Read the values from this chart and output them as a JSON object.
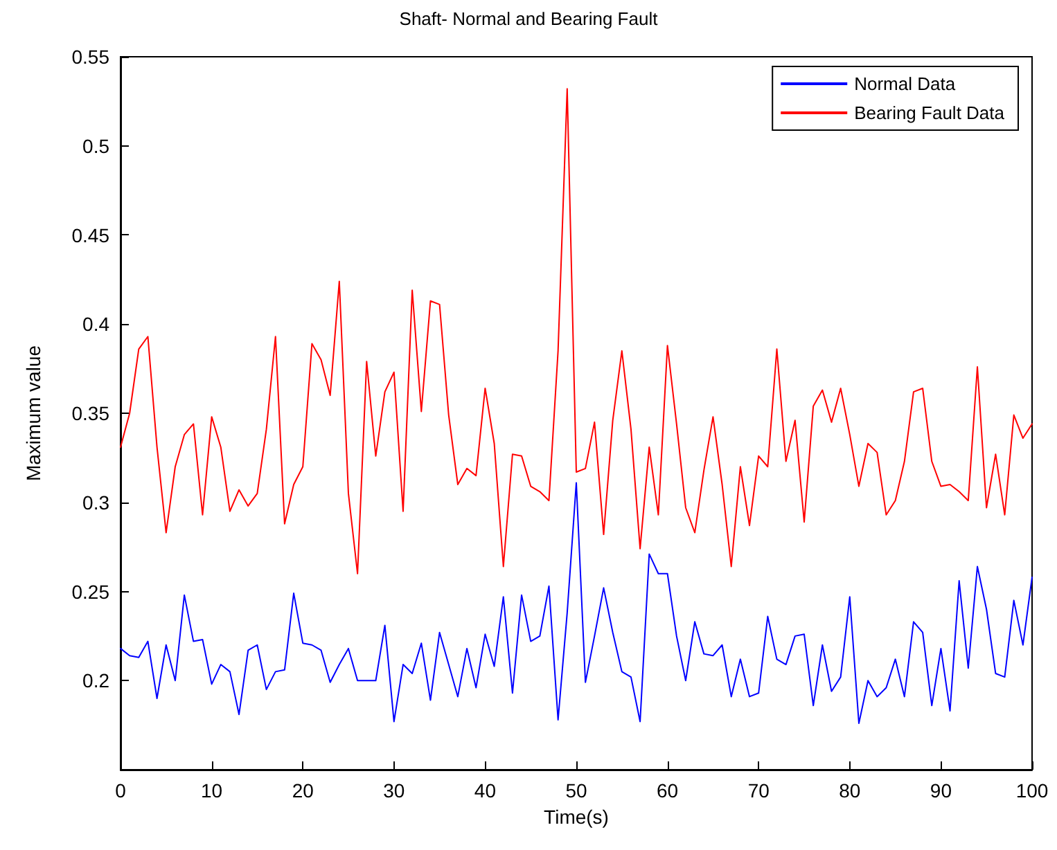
{
  "chart_data": {
    "type": "line",
    "title": "Shaft- Normal and Bearing Fault",
    "xlabel": "Time(s)",
    "ylabel": "Maximum value",
    "x": [
      0,
      1,
      2,
      3,
      4,
      5,
      6,
      7,
      8,
      9,
      10,
      11,
      12,
      13,
      14,
      15,
      16,
      17,
      18,
      19,
      20,
      21,
      22,
      23,
      24,
      25,
      26,
      27,
      28,
      29,
      30,
      31,
      32,
      33,
      34,
      35,
      36,
      37,
      38,
      39,
      40,
      41,
      42,
      43,
      44,
      45,
      46,
      47,
      48,
      49,
      50,
      51,
      52,
      53,
      54,
      55,
      56,
      57,
      58,
      59,
      60,
      61,
      62,
      63,
      64,
      65,
      66,
      67,
      68,
      69,
      70,
      71,
      72,
      73,
      74,
      75,
      76,
      77,
      78,
      79,
      80,
      81,
      82,
      83,
      84,
      85,
      86,
      87,
      88,
      89,
      90,
      91,
      92,
      93,
      94,
      95,
      96,
      97,
      98,
      99,
      100
    ],
    "series": [
      {
        "name": "Normal Data",
        "color": "#0000ff",
        "values": [
          0.218,
          0.214,
          0.213,
          0.222,
          0.19,
          0.22,
          0.2,
          0.248,
          0.222,
          0.223,
          0.198,
          0.209,
          0.205,
          0.181,
          0.217,
          0.22,
          0.195,
          0.205,
          0.206,
          0.249,
          0.221,
          0.22,
          0.217,
          0.199,
          0.209,
          0.218,
          0.2,
          0.2,
          0.2,
          0.231,
          0.177,
          0.209,
          0.204,
          0.221,
          0.189,
          0.227,
          0.209,
          0.191,
          0.218,
          0.196,
          0.226,
          0.208,
          0.247,
          0.193,
          0.248,
          0.222,
          0.225,
          0.253,
          0.178,
          0.238,
          0.311,
          0.199,
          0.225,
          0.252,
          0.227,
          0.205,
          0.202,
          0.177,
          0.271,
          0.26,
          0.26,
          0.225,
          0.2,
          0.233,
          0.215,
          0.214,
          0.22,
          0.191,
          0.212,
          0.191,
          0.193,
          0.236,
          0.212,
          0.209,
          0.225,
          0.226,
          0.186,
          0.22,
          0.194,
          0.202,
          0.247,
          0.176,
          0.2,
          0.191,
          0.196,
          0.212,
          0.191,
          0.233,
          0.227,
          0.186,
          0.218,
          0.183,
          0.256,
          0.207,
          0.264,
          0.24,
          0.204,
          0.202,
          0.245,
          0.22,
          0.258
        ]
      },
      {
        "name": "Bearing Fault Data",
        "color": "#ff0000",
        "values": [
          0.331,
          0.35,
          0.386,
          0.393,
          0.331,
          0.283,
          0.32,
          0.338,
          0.344,
          0.293,
          0.348,
          0.331,
          0.295,
          0.307,
          0.298,
          0.305,
          0.341,
          0.393,
          0.288,
          0.31,
          0.32,
          0.389,
          0.38,
          0.36,
          0.424,
          0.305,
          0.26,
          0.379,
          0.326,
          0.362,
          0.373,
          0.295,
          0.419,
          0.351,
          0.413,
          0.411,
          0.349,
          0.31,
          0.319,
          0.315,
          0.364,
          0.333,
          0.264,
          0.327,
          0.326,
          0.309,
          0.306,
          0.301,
          0.385,
          0.532,
          0.317,
          0.319,
          0.345,
          0.282,
          0.346,
          0.385,
          0.341,
          0.274,
          0.331,
          0.293,
          0.388,
          0.344,
          0.297,
          0.283,
          0.318,
          0.348,
          0.31,
          0.264,
          0.32,
          0.287,
          0.326,
          0.32,
          0.386,
          0.323,
          0.346,
          0.289,
          0.354,
          0.363,
          0.345,
          0.364,
          0.338,
          0.309,
          0.333,
          0.328,
          0.293,
          0.301,
          0.323,
          0.362,
          0.364,
          0.323,
          0.309,
          0.31,
          0.306,
          0.301,
          0.376,
          0.297,
          0.327,
          0.293,
          0.349,
          0.336,
          0.344
        ]
      }
    ],
    "xlim": [
      0,
      100
    ],
    "xticks": [
      0,
      10,
      20,
      30,
      40,
      50,
      60,
      70,
      80,
      90,
      100
    ],
    "ylim": [
      0.15,
      0.55
    ],
    "yticks": [
      {
        "value": 0.15,
        "label": null
      },
      0.2,
      0.25,
      0.3,
      0.35,
      0.4,
      0.45,
      0.5,
      0.55
    ],
    "grid": false,
    "legend": "top right",
    "marker": "none",
    "line_style": "solid"
  }
}
